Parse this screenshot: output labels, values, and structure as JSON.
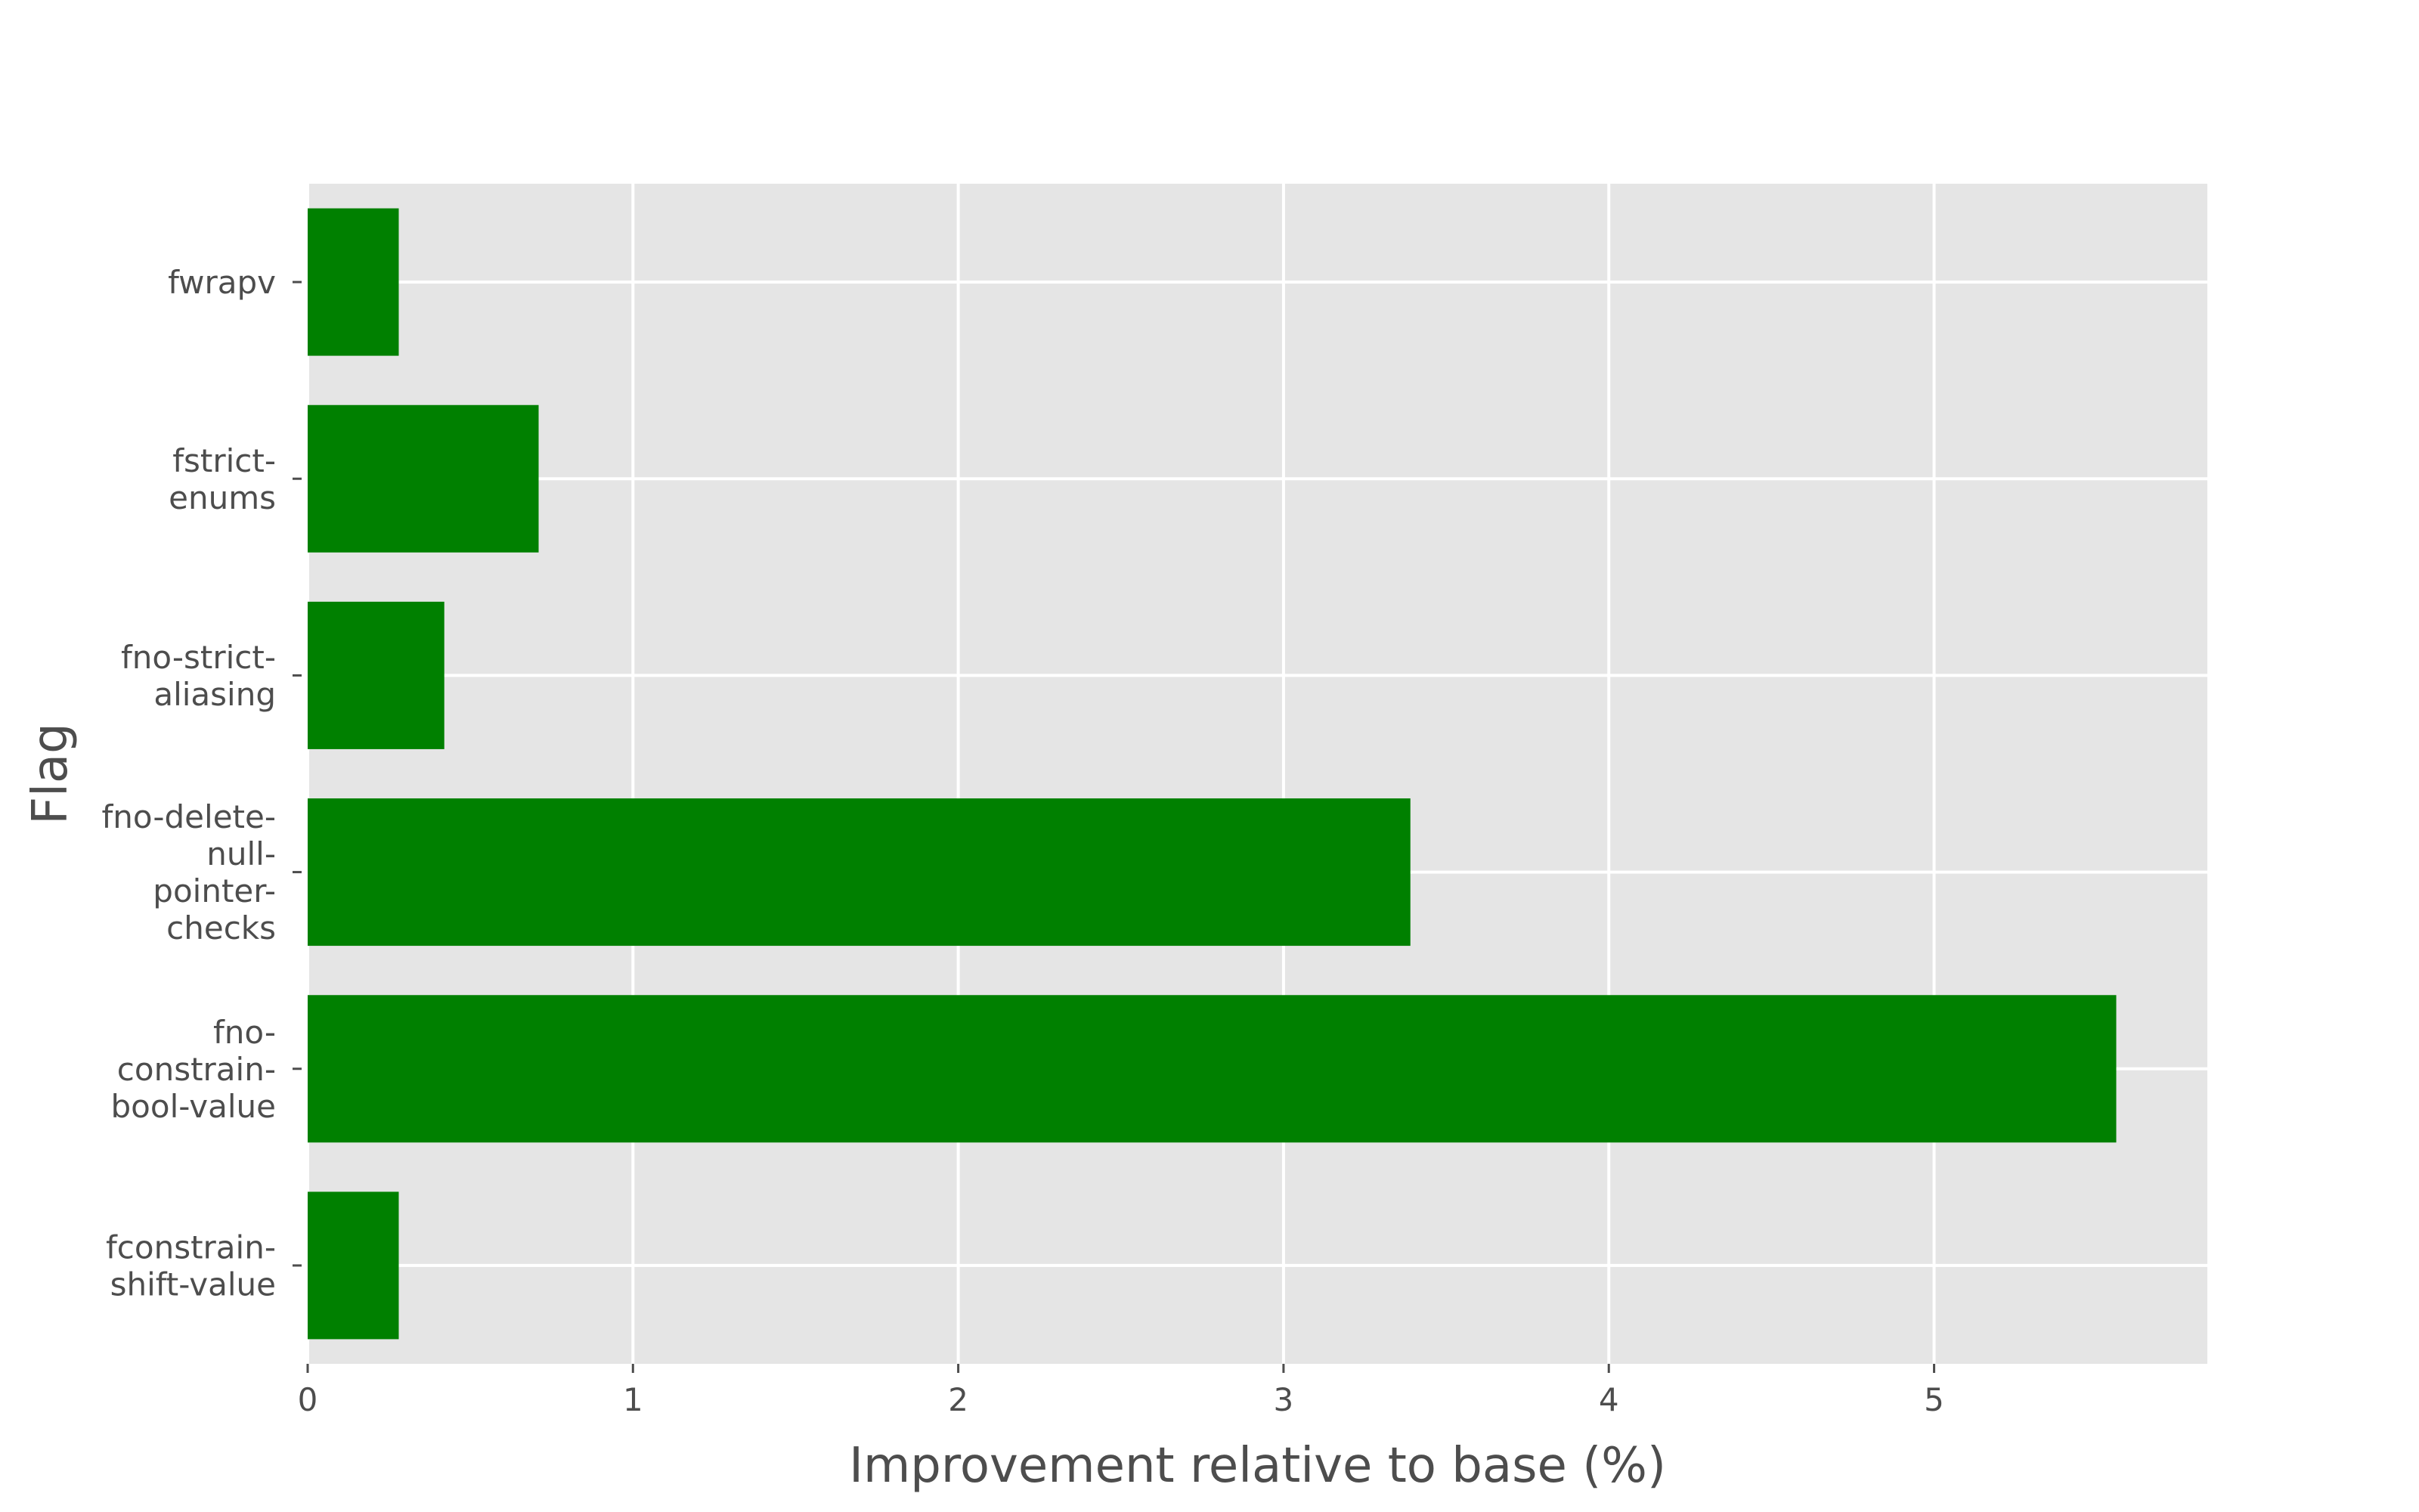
{
  "chart_data": {
    "type": "bar",
    "orientation": "horizontal",
    "title": "",
    "xlabel": "Improvement relative to base (%)",
    "ylabel": "Flag",
    "xlim": [
      0,
      5.84
    ],
    "xticks": [
      "0",
      "1",
      "2",
      "3",
      "4",
      "5"
    ],
    "grid": true,
    "bar_color": "#008000",
    "background_color": "#e5e5e5",
    "grid_color": "#ffffff",
    "categories": [
      {
        "label_lines": [
          "fwrapv"
        ],
        "value": 0.28
      },
      {
        "label_lines": [
          "fstrict-",
          "enums"
        ],
        "value": 0.71
      },
      {
        "label_lines": [
          "fno-strict-",
          "aliasing"
        ],
        "value": 0.42
      },
      {
        "label_lines": [
          "fno-delete-",
          "null-",
          "pointer-",
          "checks"
        ],
        "value": 3.39
      },
      {
        "label_lines": [
          "fno-",
          "constrain-",
          "bool-value"
        ],
        "value": 5.56
      },
      {
        "label_lines": [
          "fconstrain-",
          "shift-value"
        ],
        "value": 0.28
      }
    ]
  }
}
